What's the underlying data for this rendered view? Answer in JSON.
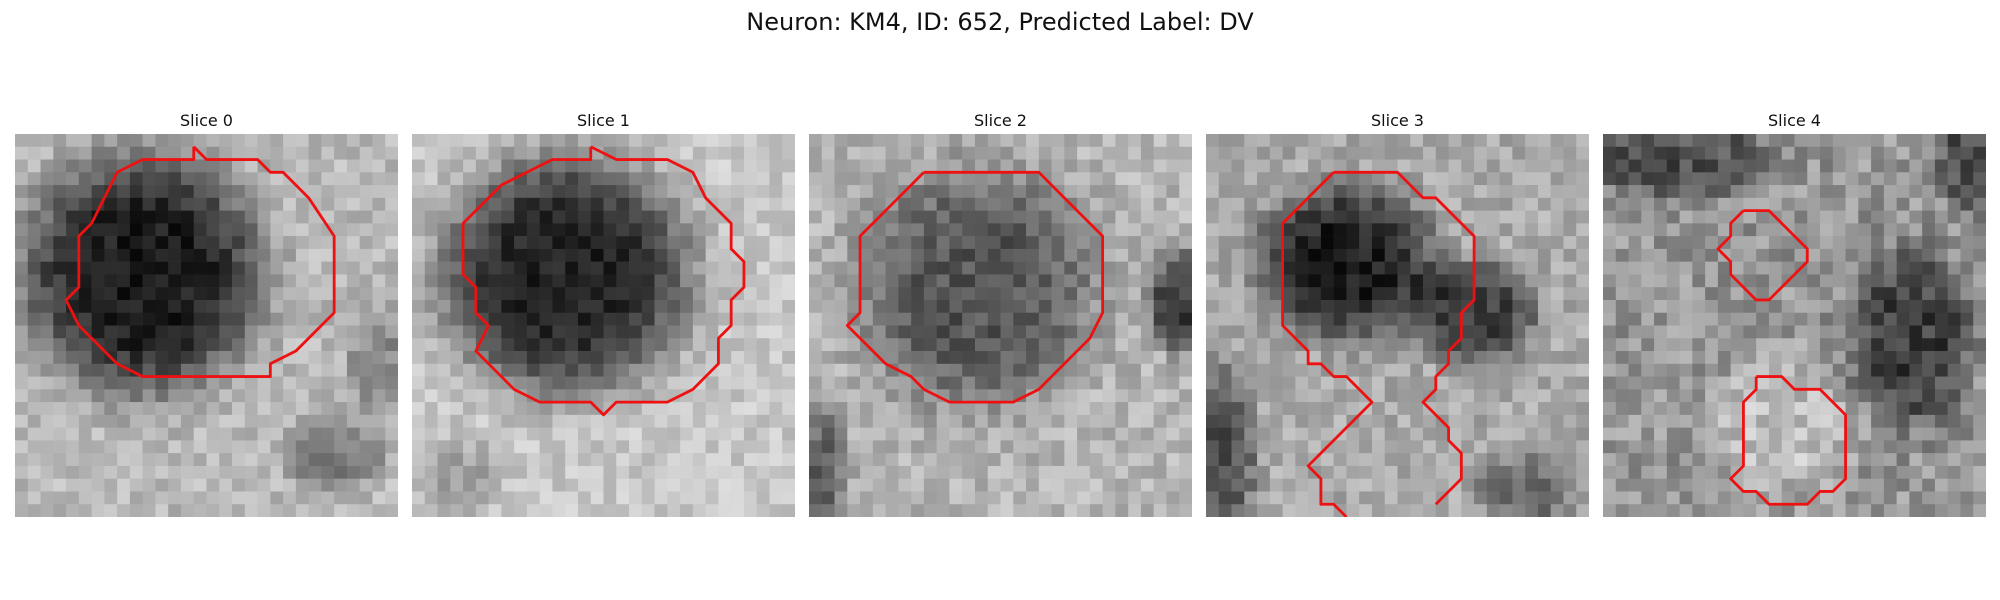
{
  "figure": {
    "title": "Neuron: KM4, ID: 652, Predicted Label: DV"
  },
  "panels": [
    {
      "title": "Slice 0"
    },
    {
      "title": "Slice 1"
    },
    {
      "title": "Slice 2"
    },
    {
      "title": "Slice 3"
    },
    {
      "title": "Slice 4"
    }
  ],
  "colors": {
    "contour": "#ee1111",
    "background": "#ffffff"
  }
}
